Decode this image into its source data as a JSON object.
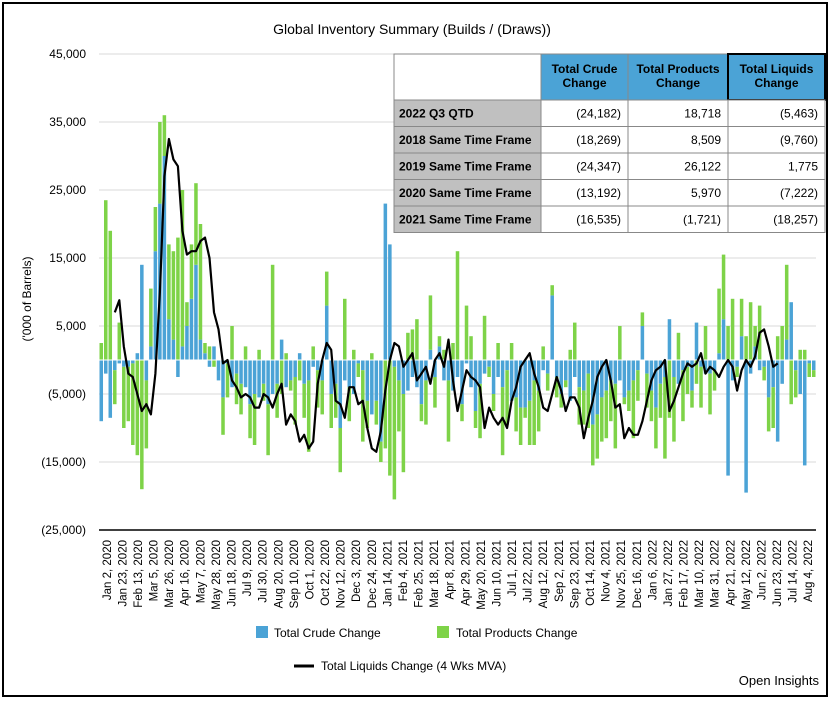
{
  "chart_data": {
    "type": "bar",
    "title": "Global Inventory Summary (Builds / (Draws))",
    "ylabel": "('000 of Barrels)",
    "ylim": [
      -25000,
      45000
    ],
    "ytick_labels": [
      "45,000",
      "35,000",
      "25,000",
      "15,000",
      "5,000",
      "(5,000)",
      "(15,000)",
      "(25,000)"
    ],
    "ytick_values": [
      45000,
      35000,
      25000,
      15000,
      5000,
      -5000,
      -15000,
      -25000
    ],
    "xtick_labels": [
      "Jan 2, 2020",
      "Jan 23, 2020",
      "Feb 13, 2020",
      "Mar 5, 2020",
      "Mar 26, 2020",
      "Apr 16, 2020",
      "May 7, 2020",
      "May 28, 2020",
      "Jun 18, 2020",
      "Jul 9, 2020",
      "Jul 30, 2020",
      "Aug 20, 2020",
      "Sep 10, 2020",
      "Oct 1, 2020",
      "Oct 22, 2020",
      "Nov 12, 2020",
      "Dec 3, 2020",
      "Dec 24, 2020",
      "Jan 14, 2021",
      "Feb 4, 2021",
      "Feb 25, 2021",
      "Mar 18, 2021",
      "Apr 8, 2021",
      "Apr 29, 2021",
      "May 20, 2021",
      "Jun 10, 2021",
      "Jul 1, 2021",
      "Jul 22, 2021",
      "Aug 12, 2021",
      "Sep 2, 2021",
      "Sep 23, 2021",
      "Oct 14, 2021",
      "Nov 4, 2021",
      "Nov 25, 2021",
      "Dec 16, 2021",
      "Jan 6, 2022",
      "Jan 27, 2022",
      "Feb 17, 2022",
      "Mar 10, 2022",
      "Mar 31, 2022",
      "Apr 21, 2022",
      "May 12, 2022",
      "Jun 2, 2022",
      "Jun 23, 2022",
      "Jul 14, 2022",
      "Aug 4, 2022"
    ],
    "grid": "horizontal",
    "legend_placement": "bottom",
    "series": [
      {
        "name": "Total Crude Change",
        "kind": "stacked-bar",
        "color": "#4ba3d6",
        "values": [
          -9000,
          -2000,
          -8500,
          -1500,
          -500,
          -1000,
          -1000,
          -500,
          1000,
          14000,
          -3000,
          2000,
          16000,
          23000,
          30000,
          6000,
          3000,
          -2500,
          2000,
          5000,
          9000,
          14000,
          3000,
          1000,
          -1000,
          2000,
          -3000,
          -5500,
          -500,
          -4000,
          -2000,
          -3500,
          -4000,
          -6500,
          -5000,
          -5500,
          -3500,
          -6500,
          -5000,
          -3500,
          3000,
          -4000,
          -3000,
          -2500,
          1000,
          -3500,
          -3000,
          -1000,
          -1500,
          -3000,
          8000,
          -5000,
          -3500,
          -10000,
          -3000,
          -4000,
          -5000,
          -500,
          -1500,
          -6000,
          -8000,
          -6000,
          -12000,
          23000,
          17000,
          -1000,
          -3000,
          -5000,
          -4500,
          -2500,
          -4000,
          -6500,
          -3000,
          1500,
          -2500,
          2000,
          -3000,
          -3000,
          -4500,
          -2500,
          -6500,
          -500,
          -4000,
          -7500,
          -3500,
          -2000,
          -1000,
          -5000,
          -2500,
          -4000,
          -1500,
          -6000,
          -5500,
          -7000,
          -7000,
          -6000,
          -3000,
          -4500,
          -1500,
          -2000,
          9500,
          -2500,
          -5000,
          -3000,
          -6000,
          -2500,
          -4000,
          -4500,
          -2000,
          -9500,
          -8000,
          -5500,
          -4500,
          -3000,
          -3500,
          -3000,
          -5500,
          -4500,
          -3000,
          -1500,
          5000,
          -2000,
          -4500,
          -7000,
          -3500,
          -2500,
          6000,
          -2500,
          -3500,
          -1500,
          -1000,
          -4500,
          5500,
          -1000,
          -2000,
          -2000,
          -1500,
          1000,
          6000,
          -17000,
          -3000,
          -1000,
          3500,
          -19500,
          -2000,
          2000,
          -1500,
          -1000,
          -5500,
          -4000,
          -12000,
          -3500,
          3000,
          8500,
          -1500,
          -5000,
          -15500,
          -500,
          -1500
        ]
      },
      {
        "name": "Total Products Change",
        "kind": "stacked-bar",
        "color": "#7ed348",
        "values": [
          2500,
          23500,
          19000,
          -5000,
          5500,
          -9000,
          -8000,
          -12000,
          -14000,
          -19000,
          -10000,
          8500,
          6500,
          12000,
          6000,
          11000,
          13000,
          18000,
          23000,
          3500,
          8000,
          12000,
          17000,
          1500,
          2000,
          -1000,
          0,
          -5500,
          -5000,
          5000,
          -4500,
          -4500,
          2000,
          -5000,
          -7500,
          1500,
          -2500,
          -7500,
          14000,
          -5000,
          -5000,
          1000,
          -1500,
          -7000,
          -3000,
          -5000,
          -10500,
          2000,
          -5500,
          -5000,
          5000,
          -5000,
          -5000,
          -6500,
          9000,
          -5000,
          1500,
          -2000,
          -10500,
          -4000,
          1000,
          -3500,
          -3000,
          -13000,
          -17000,
          -19500,
          -7500,
          -11500,
          4000,
          4500,
          6000,
          -2500,
          -6500,
          8000,
          -4500,
          1500,
          1500,
          -9000,
          2500,
          16000,
          -2500,
          8000,
          3500,
          -2500,
          -8000,
          6500,
          -1500,
          -2500,
          2500,
          -10000,
          -8000,
          2500,
          -5000,
          -5500,
          -1500,
          -6500,
          -9500,
          -6000,
          2000,
          -2500,
          1500,
          -3000,
          -2000,
          -1000,
          1500,
          5500,
          -5500,
          -5000,
          -8000,
          -6000,
          -6500,
          -6500,
          -7000,
          -6000,
          -9500,
          5000,
          -1000,
          -3000,
          -8500,
          -4500,
          2000,
          -5000,
          -4500,
          -6000,
          -5000,
          -12000,
          -8500,
          -9500,
          4000,
          -7500,
          -4000,
          -2500,
          -3500,
          -6000,
          5000,
          -6000,
          -3000,
          9500,
          9500,
          5000,
          9000,
          -1500,
          5500,
          3500,
          8500,
          3000,
          8000,
          -2000,
          -5000,
          -6000,
          3500,
          5000,
          11000,
          -6500,
          -4000,
          1500,
          1500,
          -2000,
          -1000
        ]
      },
      {
        "name": "Total Liquids Change (4 Wks MVA)",
        "kind": "line",
        "color": "#000000",
        "values": [
          7000,
          8800,
          2000,
          -2000,
          -2500,
          -5000,
          -7500,
          -6500,
          -8000,
          -2000,
          10000,
          27000,
          32500,
          29500,
          28500,
          19000,
          15500,
          16000,
          16000,
          17500,
          18000,
          15000,
          7000,
          4500,
          -500,
          0,
          -3000,
          -4000,
          -5500,
          -5000,
          -5500,
          -7000,
          -7000,
          -5000,
          -5500,
          -7000,
          -5000,
          -3500,
          -9500,
          -8000,
          -9000,
          -12000,
          -11000,
          -13000,
          -12000,
          -3500,
          0,
          2500,
          1500,
          -6000,
          -6500,
          -8500,
          -4000,
          -4000,
          -6500,
          -6000,
          -10000,
          -13000,
          -13500,
          -10500,
          -4500,
          0,
          2500,
          2000,
          -1000,
          0,
          1000,
          -3000,
          -2000,
          -1000,
          -3500,
          0,
          1000,
          -1000,
          3000,
          -3000,
          -7500,
          -4500,
          -1500,
          -2500,
          -3000,
          -4000,
          -10000,
          -7000,
          -8500,
          -9500,
          -8500,
          -10000,
          -6000,
          -4000,
          -1000,
          0,
          1000,
          -2000,
          -4000,
          -7000,
          -7500,
          -5000,
          -2500,
          -4500,
          -7500,
          -5500,
          -5500,
          -7000,
          -11500,
          -8500,
          -6000,
          -2500,
          -1000,
          0,
          -3000,
          -7000,
          -6500,
          -11500,
          -10000,
          -11000,
          -11000,
          -9000,
          -6000,
          -3000,
          -1500,
          -1000,
          0,
          -7500,
          -6000,
          -4000,
          -2000,
          -500,
          -1000,
          -500,
          1000,
          -2000,
          -1000,
          -1500,
          -2500,
          -1000,
          0,
          -1000,
          -4500,
          -1500,
          0,
          -1000,
          500,
          4000,
          4500,
          2000,
          -1000,
          -500
        ]
      }
    ],
    "table": {
      "headers": [
        "Total Crude Change",
        "Total Products Change",
        "Total Liquids Change"
      ],
      "rows": [
        {
          "label": "2022 Q3 QTD",
          "values": [
            "(24,182)",
            "18,718",
            "(5,463)"
          ]
        },
        {
          "label": "2018 Same Time Frame",
          "values": [
            "(18,269)",
            "8,509",
            "(9,760)"
          ]
        },
        {
          "label": "2019 Same Time Frame",
          "values": [
            "(24,347)",
            "26,122",
            "1,775"
          ]
        },
        {
          "label": "2020 Same Time Frame",
          "values": [
            "(13,192)",
            "5,970",
            "(7,222)"
          ]
        },
        {
          "label": "2021 Same Time Frame",
          "values": [
            "(16,535)",
            "(1,721)",
            "(18,257)"
          ]
        }
      ]
    },
    "colors": {
      "crude": "#4ba3d6",
      "products": "#7ed348",
      "line": "#000000",
      "header_fill": "#4ba3d6",
      "row_label_fill": "#c0c0c0"
    }
  },
  "credit": "Open Insights"
}
